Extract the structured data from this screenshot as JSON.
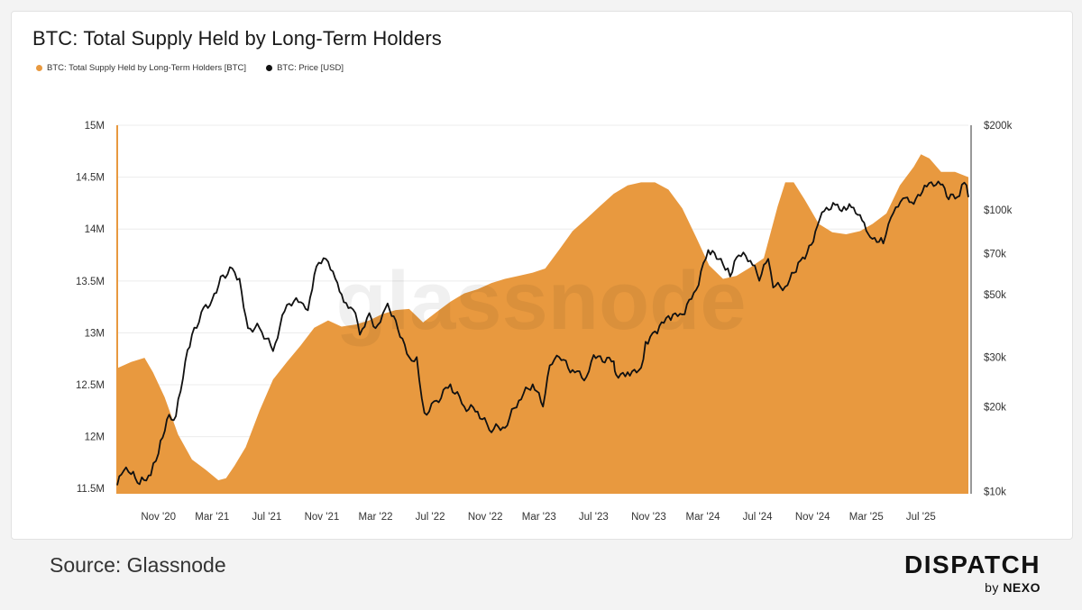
{
  "title": "BTC: Total Supply Held by Long-Term Holders",
  "legend": [
    {
      "label": "BTC: Total Supply Held by Long-Term Holders [BTC]",
      "color": "#e8993f"
    },
    {
      "label": "BTC: Price [USD]",
      "color": "#111111"
    }
  ],
  "watermark": "glassnode",
  "source": "Source: Glassnode",
  "brand": {
    "name": "DISPATCH",
    "by": "by",
    "parent": "NEXO"
  },
  "chart_data": {
    "type": "area",
    "title": "BTC: Total Supply Held by Long-Term Holders",
    "x_range": [
      "2020-08-01",
      "2025-10-15"
    ],
    "x_ticks": [
      {
        "date": "2020-11-01",
        "label": "Nov '20"
      },
      {
        "date": "2021-03-01",
        "label": "Mar '21"
      },
      {
        "date": "2021-07-01",
        "label": "Jul '21"
      },
      {
        "date": "2021-11-01",
        "label": "Nov '21"
      },
      {
        "date": "2022-03-01",
        "label": "Mar '22"
      },
      {
        "date": "2022-07-01",
        "label": "Jul '22"
      },
      {
        "date": "2022-11-01",
        "label": "Nov '22"
      },
      {
        "date": "2023-03-01",
        "label": "Mar '23"
      },
      {
        "date": "2023-07-01",
        "label": "Jul '23"
      },
      {
        "date": "2023-11-01",
        "label": "Nov '23"
      },
      {
        "date": "2024-03-01",
        "label": "Mar '24"
      },
      {
        "date": "2024-07-01",
        "label": "Jul '24"
      },
      {
        "date": "2024-11-01",
        "label": "Nov '24"
      },
      {
        "date": "2025-03-01",
        "label": "Mar '25"
      },
      {
        "date": "2025-07-01",
        "label": "Jul '25"
      }
    ],
    "y_left": {
      "min": 11.45,
      "max": 15.0,
      "unit": "M BTC",
      "ticks": [
        {
          "v": 15.0,
          "label": "15M"
        },
        {
          "v": 14.5,
          "label": "14.5M"
        },
        {
          "v": 14.0,
          "label": "14M"
        },
        {
          "v": 13.5,
          "label": "13.5M"
        },
        {
          "v": 13.0,
          "label": "13M"
        },
        {
          "v": 12.5,
          "label": "12.5M"
        },
        {
          "v": 12.0,
          "label": "12M"
        },
        {
          "v": 11.5,
          "label": "11.5M"
        }
      ]
    },
    "y_right": {
      "scale": "log",
      "min": 9800,
      "max": 200000,
      "unit": "USD",
      "ticks": [
        {
          "v": 200000,
          "label": "$200k"
        },
        {
          "v": 100000,
          "label": "$100k"
        },
        {
          "v": 70000,
          "label": "$70k"
        },
        {
          "v": 50000,
          "label": "$50k"
        },
        {
          "v": 30000,
          "label": "$30k"
        },
        {
          "v": 20000,
          "label": "$20k"
        },
        {
          "v": 10000,
          "label": "$10k"
        }
      ]
    },
    "grid": true,
    "legend_position": "top-left",
    "series": [
      {
        "name": "BTC: Total Supply Held by Long-Term Holders [BTC]",
        "axis": "left",
        "style": "area",
        "color": "#e8993f",
        "unit": "M BTC",
        "points": [
          [
            "2020-08-01",
            12.66
          ],
          [
            "2020-09-01",
            12.72
          ],
          [
            "2020-10-01",
            12.76
          ],
          [
            "2020-10-20",
            12.62
          ],
          [
            "2020-11-15",
            12.38
          ],
          [
            "2020-12-15",
            12.02
          ],
          [
            "2021-01-15",
            11.78
          ],
          [
            "2021-02-15",
            11.68
          ],
          [
            "2021-03-15",
            11.58
          ],
          [
            "2021-04-01",
            11.6
          ],
          [
            "2021-04-20",
            11.72
          ],
          [
            "2021-05-15",
            11.9
          ],
          [
            "2021-06-15",
            12.25
          ],
          [
            "2021-07-15",
            12.55
          ],
          [
            "2021-08-15",
            12.72
          ],
          [
            "2021-09-15",
            12.88
          ],
          [
            "2021-10-15",
            13.05
          ],
          [
            "2021-11-15",
            13.12
          ],
          [
            "2021-12-15",
            13.06
          ],
          [
            "2022-01-15",
            13.08
          ],
          [
            "2022-02-15",
            13.12
          ],
          [
            "2022-03-15",
            13.18
          ],
          [
            "2022-04-15",
            13.22
          ],
          [
            "2022-05-15",
            13.23
          ],
          [
            "2022-06-15",
            13.1
          ],
          [
            "2022-07-15",
            13.2
          ],
          [
            "2022-08-15",
            13.3
          ],
          [
            "2022-09-15",
            13.38
          ],
          [
            "2022-10-15",
            13.42
          ],
          [
            "2022-11-15",
            13.48
          ],
          [
            "2022-12-15",
            13.52
          ],
          [
            "2023-01-15",
            13.55
          ],
          [
            "2023-02-15",
            13.58
          ],
          [
            "2023-03-15",
            13.62
          ],
          [
            "2023-04-15",
            13.8
          ],
          [
            "2023-05-15",
            13.98
          ],
          [
            "2023-06-15",
            14.1
          ],
          [
            "2023-07-15",
            14.22
          ],
          [
            "2023-08-15",
            14.34
          ],
          [
            "2023-09-15",
            14.42
          ],
          [
            "2023-10-15",
            14.45
          ],
          [
            "2023-11-15",
            14.45
          ],
          [
            "2023-12-15",
            14.38
          ],
          [
            "2024-01-15",
            14.2
          ],
          [
            "2024-02-15",
            13.92
          ],
          [
            "2024-03-15",
            13.65
          ],
          [
            "2024-04-15",
            13.52
          ],
          [
            "2024-05-15",
            13.55
          ],
          [
            "2024-06-15",
            13.63
          ],
          [
            "2024-07-15",
            13.72
          ],
          [
            "2024-08-15",
            14.22
          ],
          [
            "2024-09-01",
            14.45
          ],
          [
            "2024-09-20",
            14.45
          ],
          [
            "2024-10-15",
            14.28
          ],
          [
            "2024-11-15",
            14.05
          ],
          [
            "2024-12-15",
            13.97
          ],
          [
            "2025-01-15",
            13.95
          ],
          [
            "2025-02-15",
            13.98
          ],
          [
            "2025-03-15",
            14.05
          ],
          [
            "2025-04-15",
            14.15
          ],
          [
            "2025-05-15",
            14.42
          ],
          [
            "2025-06-15",
            14.6
          ],
          [
            "2025-07-01",
            14.72
          ],
          [
            "2025-07-20",
            14.68
          ],
          [
            "2025-08-15",
            14.55
          ],
          [
            "2025-09-15",
            14.55
          ],
          [
            "2025-10-15",
            14.5
          ]
        ]
      },
      {
        "name": "BTC: Price [USD]",
        "axis": "right",
        "style": "line",
        "color": "#111111",
        "unit": "USD",
        "points": [
          [
            "2020-08-01",
            10500
          ],
          [
            "2020-08-15",
            11800
          ],
          [
            "2020-09-01",
            11500
          ],
          [
            "2020-09-20",
            10600
          ],
          [
            "2020-10-15",
            11400
          ],
          [
            "2020-11-01",
            13600
          ],
          [
            "2020-11-20",
            18000
          ],
          [
            "2020-12-10",
            18500
          ],
          [
            "2020-12-31",
            29000
          ],
          [
            "2021-01-15",
            36000
          ],
          [
            "2021-02-10",
            45000
          ],
          [
            "2021-03-01",
            48000
          ],
          [
            "2021-03-20",
            58000
          ],
          [
            "2021-04-15",
            62000
          ],
          [
            "2021-05-01",
            57000
          ],
          [
            "2021-05-20",
            38000
          ],
          [
            "2021-06-15",
            38000
          ],
          [
            "2021-07-15",
            31500
          ],
          [
            "2021-08-15",
            46000
          ],
          [
            "2021-09-15",
            47000
          ],
          [
            "2021-10-01",
            44000
          ],
          [
            "2021-10-20",
            63000
          ],
          [
            "2021-11-10",
            67000
          ],
          [
            "2021-12-01",
            57000
          ],
          [
            "2021-12-20",
            47000
          ],
          [
            "2022-01-15",
            43000
          ],
          [
            "2022-01-25",
            36000
          ],
          [
            "2022-02-15",
            43000
          ],
          [
            "2022-03-01",
            38000
          ],
          [
            "2022-03-28",
            46500
          ],
          [
            "2022-04-15",
            40500
          ],
          [
            "2022-05-15",
            30000
          ],
          [
            "2022-06-01",
            30000
          ],
          [
            "2022-06-18",
            19000
          ],
          [
            "2022-07-15",
            21000
          ],
          [
            "2022-08-15",
            24000
          ],
          [
            "2022-09-15",
            20000
          ],
          [
            "2022-10-15",
            19200
          ],
          [
            "2022-11-10",
            16500
          ],
          [
            "2022-12-15",
            16800
          ],
          [
            "2023-01-15",
            21000
          ],
          [
            "2023-02-15",
            24000
          ],
          [
            "2023-03-10",
            20000
          ],
          [
            "2023-03-25",
            28000
          ],
          [
            "2023-04-15",
            30000
          ],
          [
            "2023-05-15",
            27000
          ],
          [
            "2023-06-15",
            25500
          ],
          [
            "2023-07-01",
            30500
          ],
          [
            "2023-08-15",
            29000
          ],
          [
            "2023-08-20",
            26000
          ],
          [
            "2023-09-15",
            26500
          ],
          [
            "2023-10-15",
            27500
          ],
          [
            "2023-10-25",
            34000
          ],
          [
            "2023-11-15",
            37000
          ],
          [
            "2023-12-15",
            42000
          ],
          [
            "2024-01-15",
            42500
          ],
          [
            "2024-02-15",
            52000
          ],
          [
            "2024-03-13",
            72000
          ],
          [
            "2024-04-15",
            64000
          ],
          [
            "2024-05-01",
            58000
          ],
          [
            "2024-05-20",
            69000
          ],
          [
            "2024-06-15",
            66000
          ],
          [
            "2024-07-05",
            56000
          ],
          [
            "2024-07-25",
            67000
          ],
          [
            "2024-08-05",
            53000
          ],
          [
            "2024-09-06",
            54000
          ],
          [
            "2024-09-30",
            65000
          ],
          [
            "2024-10-15",
            67000
          ],
          [
            "2024-11-12",
            88000
          ],
          [
            "2024-11-22",
            98000
          ],
          [
            "2024-12-17",
            106000
          ],
          [
            "2025-01-15",
            100000
          ],
          [
            "2025-01-22",
            105000
          ],
          [
            "2025-02-15",
            96000
          ],
          [
            "2025-03-10",
            80000
          ],
          [
            "2025-04-08",
            76000
          ],
          [
            "2025-04-25",
            94000
          ],
          [
            "2025-05-22",
            110000
          ],
          [
            "2025-06-15",
            105000
          ],
          [
            "2025-07-14",
            121000
          ],
          [
            "2025-08-14",
            123000
          ],
          [
            "2025-09-01",
            109000
          ],
          [
            "2025-09-25",
            112000
          ],
          [
            "2025-10-06",
            125000
          ],
          [
            "2025-10-15",
            111000
          ]
        ]
      }
    ]
  }
}
